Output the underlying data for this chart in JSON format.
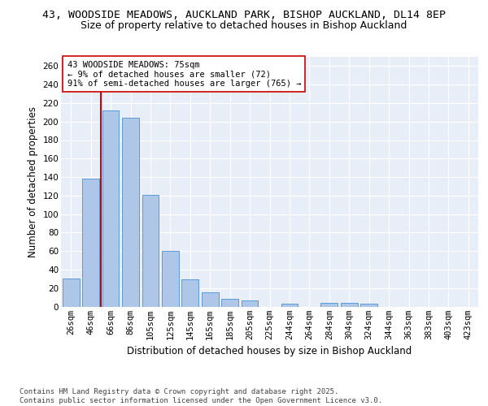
{
  "title": "43, WOODSIDE MEADOWS, AUCKLAND PARK, BISHOP AUCKLAND, DL14 8EP",
  "subtitle": "Size of property relative to detached houses in Bishop Auckland",
  "xlabel": "Distribution of detached houses by size in Bishop Auckland",
  "ylabel": "Number of detached properties",
  "categories": [
    "26sqm",
    "46sqm",
    "66sqm",
    "86sqm",
    "105sqm",
    "125sqm",
    "145sqm",
    "165sqm",
    "185sqm",
    "205sqm",
    "225sqm",
    "244sqm",
    "264sqm",
    "284sqm",
    "304sqm",
    "324sqm",
    "344sqm",
    "363sqm",
    "383sqm",
    "403sqm",
    "423sqm"
  ],
  "values": [
    30,
    138,
    212,
    204,
    121,
    60,
    29,
    15,
    8,
    7,
    0,
    3,
    0,
    4,
    4,
    3,
    0,
    0,
    0,
    0,
    0
  ],
  "bar_color": "#aec6e8",
  "bar_edge_color": "#5b9bd5",
  "vline_color": "#cc0000",
  "annotation_text": "43 WOODSIDE MEADOWS: 75sqm\n← 9% of detached houses are smaller (72)\n91% of semi-detached houses are larger (765) →",
  "annotation_box_color": "#ffffff",
  "annotation_box_edge": "#cc0000",
  "ylim": [
    0,
    270
  ],
  "yticks": [
    0,
    20,
    40,
    60,
    80,
    100,
    120,
    140,
    160,
    180,
    200,
    220,
    240,
    260
  ],
  "bg_color": "#e8eef7",
  "footer_text": "Contains HM Land Registry data © Crown copyright and database right 2025.\nContains public sector information licensed under the Open Government Licence v3.0.",
  "title_fontsize": 9.5,
  "subtitle_fontsize": 9,
  "axis_label_fontsize": 8.5,
  "tick_fontsize": 7.5,
  "annotation_fontsize": 7.5,
  "footer_fontsize": 6.5
}
